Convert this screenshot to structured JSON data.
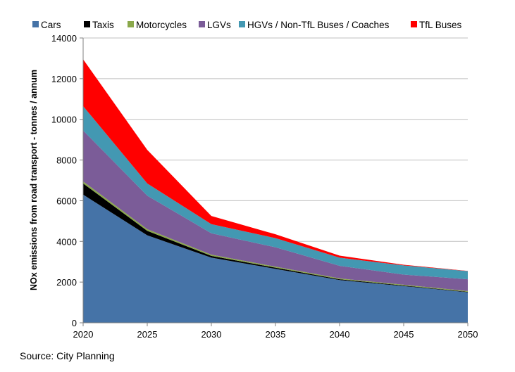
{
  "chart_data": {
    "type": "area",
    "stacked": true,
    "x": [
      2020,
      2025,
      2030,
      2035,
      2040,
      2045,
      2050
    ],
    "series": [
      {
        "name": "Cars",
        "color": "#4573a7",
        "values": [
          6300,
          4300,
          3200,
          2650,
          2100,
          1800,
          1500
        ]
      },
      {
        "name": "Taxis",
        "color": "#000000",
        "values": [
          550,
          220,
          90,
          60,
          40,
          30,
          20
        ]
      },
      {
        "name": "Motorcycles",
        "color": "#8aa84a",
        "values": [
          100,
          80,
          60,
          50,
          40,
          40,
          40
        ]
      },
      {
        "name": "LGVs",
        "color": "#7b5c98",
        "values": [
          2500,
          1650,
          1050,
          950,
          620,
          500,
          580
        ]
      },
      {
        "name": "HGVs / Non-TfL Buses / Coaches",
        "color": "#4398b2",
        "values": [
          1200,
          600,
          450,
          450,
          400,
          450,
          400
        ]
      },
      {
        "name": "TfL Buses",
        "color": "#ff0000",
        "values": [
          2300,
          1650,
          400,
          190,
          100,
          30,
          10
        ]
      }
    ],
    "ylabel": "NOx emissions from road transport - tonnes / annum",
    "xlabel": "",
    "ylim": [
      0,
      14000
    ],
    "yticks": [
      0,
      2000,
      4000,
      6000,
      8000,
      10000,
      12000,
      14000
    ],
    "xticks": [
      2020,
      2025,
      2030,
      2035,
      2040,
      2045,
      2050
    ],
    "grid": true,
    "legend_position": "top"
  },
  "source_text": "Source: City Planning"
}
